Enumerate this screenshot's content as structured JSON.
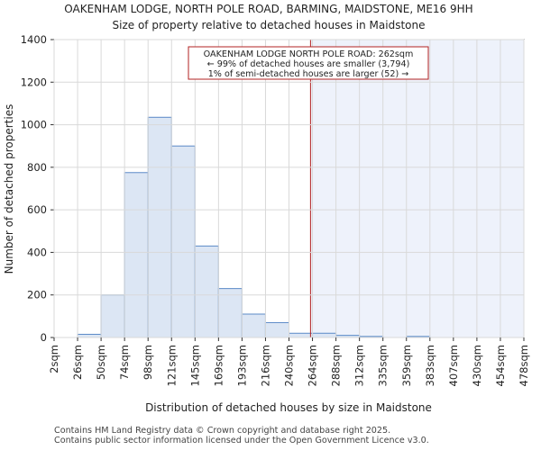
{
  "chart_data": {
    "type": "bar",
    "title": "OAKENHAM LODGE, NORTH POLE ROAD, BARMING, MAIDSTONE, ME16 9HH",
    "subtitle": "Size of property relative to detached houses in Maidstone",
    "xlabel": "Distribution of detached houses by size in Maidstone",
    "ylabel": "Number of detached properties",
    "bin_edges": [
      2,
      26,
      50,
      74,
      98,
      121,
      145,
      169,
      193,
      216,
      240,
      264,
      288,
      312,
      335,
      359,
      383,
      407,
      430,
      454,
      478
    ],
    "tick_labels": [
      "2sqm",
      "26sqm",
      "50sqm",
      "74sqm",
      "98sqm",
      "121sqm",
      "145sqm",
      "169sqm",
      "193sqm",
      "216sqm",
      "240sqm",
      "264sqm",
      "288sqm",
      "312sqm",
      "335sqm",
      "359sqm",
      "383sqm",
      "407sqm",
      "430sqm",
      "454sqm",
      "478sqm"
    ],
    "values": [
      0,
      15,
      200,
      775,
      1035,
      900,
      430,
      230,
      110,
      70,
      20,
      20,
      10,
      5,
      0,
      5,
      0,
      0,
      0,
      0
    ],
    "ylim": [
      0,
      1400
    ],
    "yticks": [
      0,
      200,
      400,
      600,
      800,
      1000,
      1200,
      1400
    ],
    "property_line": 262,
    "annotation": [
      "OAKENHAM LODGE NORTH POLE ROAD: 262sqm",
      "← 99% of detached houses are smaller (3,794)",
      "1% of semi-detached houses are larger (52) →"
    ],
    "colors": {
      "bar_fill": "#dce6f4",
      "bar_edge": "#5b8ac7",
      "line": "#b22222",
      "shade": "#eef2fb",
      "annot_border": "#b22222"
    }
  },
  "footer": {
    "line1": "Contains HM Land Registry data © Crown copyright and database right 2025.",
    "line2": "Contains public sector information licensed under the Open Government Licence v3.0."
  }
}
